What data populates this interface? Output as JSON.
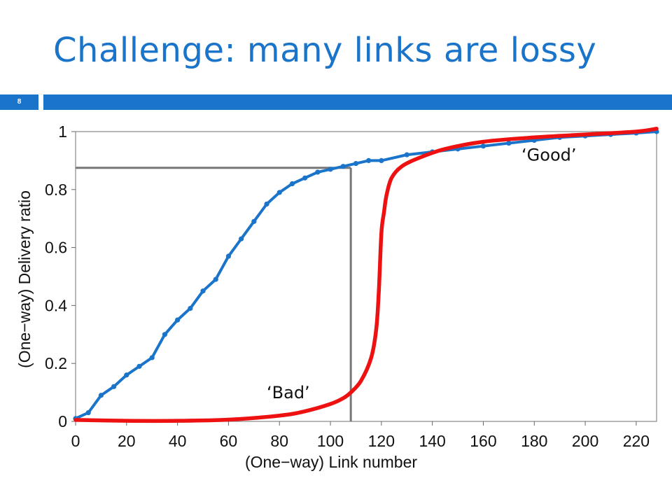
{
  "slide": {
    "title": "Challenge: many links are lossy",
    "page_number": "8",
    "accent_color": "#1a74c9"
  },
  "chart_data": {
    "type": "line",
    "xlabel": "(One−way) Link number",
    "ylabel": "(One−way) Delivery ratio",
    "xlim": [
      0,
      228
    ],
    "ylim": [
      0,
      1
    ],
    "x_ticks": [
      "0",
      "20",
      "40",
      "60",
      "80",
      "100",
      "120",
      "140",
      "160",
      "180",
      "200",
      "220"
    ],
    "y_ticks": [
      "0",
      "0.2",
      "0.4",
      "0.6",
      "0.8",
      "1"
    ],
    "grid": false,
    "series": [
      {
        "color": "#1a74c9",
        "x": [
          0,
          5,
          10,
          15,
          20,
          25,
          30,
          35,
          40,
          45,
          50,
          55,
          60,
          65,
          70,
          75,
          80,
          85,
          90,
          95,
          100,
          105,
          110,
          115,
          120,
          130,
          140,
          150,
          160,
          170,
          180,
          190,
          200,
          210,
          220,
          228
        ],
        "y": [
          0.01,
          0.03,
          0.09,
          0.12,
          0.16,
          0.19,
          0.22,
          0.3,
          0.35,
          0.39,
          0.45,
          0.49,
          0.57,
          0.63,
          0.69,
          0.75,
          0.79,
          0.82,
          0.84,
          0.86,
          0.87,
          0.88,
          0.89,
          0.9,
          0.9,
          0.92,
          0.93,
          0.94,
          0.95,
          0.96,
          0.97,
          0.98,
          0.985,
          0.99,
          0.995,
          1.0
        ]
      },
      {
        "color": "#ee1111",
        "x": [
          0,
          20,
          40,
          60,
          80,
          90,
          100,
          105,
          108,
          112,
          116,
          118,
          119,
          120,
          121,
          122,
          124,
          128,
          135,
          145,
          160,
          180,
          200,
          220,
          228
        ],
        "y": [
          0.005,
          0.002,
          0.002,
          0.006,
          0.02,
          0.035,
          0.06,
          0.08,
          0.1,
          0.14,
          0.22,
          0.32,
          0.45,
          0.65,
          0.72,
          0.78,
          0.84,
          0.88,
          0.91,
          0.94,
          0.965,
          0.98,
          0.99,
          1.0,
          1.01
        ]
      }
    ],
    "reference_lines": [
      {
        "type": "horizontal",
        "y": 0.875,
        "x_from": 0,
        "x_to": 108,
        "color": "#777777"
      },
      {
        "type": "vertical",
        "x": 108,
        "y_from": 0,
        "y_to": 0.875,
        "color": "#777777"
      }
    ],
    "annotations": [
      {
        "text": "‘Bad’",
        "x": 75,
        "y": 0.08
      },
      {
        "text": "‘Good’",
        "x": 175,
        "y": 0.9
      }
    ]
  }
}
